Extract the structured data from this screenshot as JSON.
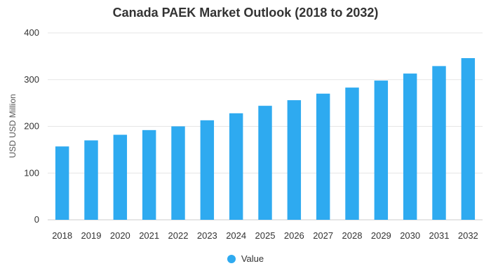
{
  "chart_data": {
    "type": "bar",
    "title": "Canada PAEK Market Outlook (2018 to 2032)",
    "xlabel": "",
    "ylabel": "USD USD Million",
    "categories": [
      "2018",
      "2019",
      "2020",
      "2021",
      "2022",
      "2023",
      "2024",
      "2025",
      "2026",
      "2027",
      "2028",
      "2029",
      "2030",
      "2031",
      "2032"
    ],
    "series": [
      {
        "name": "Value",
        "values": [
          157,
          170,
          182,
          192,
          200,
          213,
          228,
          244,
          256,
          270,
          283,
          298,
          313,
          329,
          346
        ]
      }
    ],
    "ylim": [
      0,
      400
    ],
    "yticks": [
      0,
      100,
      200,
      300,
      400
    ],
    "grid": true,
    "legend": "bottom-center",
    "colors": {
      "bar": "#2eaaf0",
      "grid": "#e6e6e6",
      "axis": "#cccccc"
    }
  }
}
